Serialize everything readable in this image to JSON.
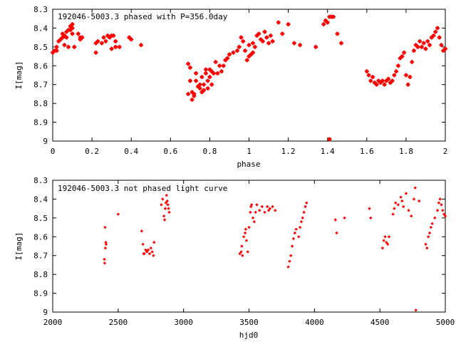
{
  "chart_data": [
    {
      "type": "scatter",
      "title": "192046-5003.3 phased with P=356.0day",
      "xlabel": "phase",
      "ylabel": "I[mag]",
      "xlim": [
        0,
        2
      ],
      "ylim": [
        8.3,
        9
      ],
      "y_inverted": true,
      "xticks": [
        0,
        0.2,
        0.4,
        0.6,
        0.8,
        1,
        1.2,
        1.4,
        1.6,
        1.8,
        2
      ],
      "xtick_labels": [
        "0",
        "0.2",
        "0.4",
        "0.6",
        "0.8",
        "1",
        "1.2",
        "1.4",
        "1.6",
        "1.8",
        "2"
      ],
      "yticks": [
        8.3,
        8.4,
        8.5,
        8.6,
        8.7,
        8.8,
        8.9,
        9
      ],
      "ytick_labels": [
        "8.3",
        "8.4",
        "8.5",
        "8.6",
        "8.7",
        "8.8",
        "8.9",
        "9"
      ],
      "marker_color": "#ff0000",
      "marker": "filled-star",
      "points": [
        [
          0.0,
          8.53
        ],
        [
          0.01,
          8.52
        ],
        [
          0.02,
          8.5
        ],
        [
          0.02,
          8.52
        ],
        [
          0.03,
          8.47
        ],
        [
          0.04,
          8.46
        ],
        [
          0.05,
          8.45
        ],
        [
          0.05,
          8.43
        ],
        [
          0.06,
          8.44
        ],
        [
          0.06,
          8.49
        ],
        [
          0.07,
          8.42
        ],
        [
          0.07,
          8.45
        ],
        [
          0.08,
          8.41
        ],
        [
          0.08,
          8.5
        ],
        [
          0.09,
          8.39
        ],
        [
          0.09,
          8.41
        ],
        [
          0.1,
          8.38
        ],
        [
          0.1,
          8.4
        ],
        [
          0.1,
          8.43
        ],
        [
          0.11,
          8.5
        ],
        [
          0.13,
          8.43
        ],
        [
          0.14,
          8.45
        ],
        [
          0.14,
          8.46
        ],
        [
          0.15,
          8.45
        ],
        [
          0.22,
          8.48
        ],
        [
          0.22,
          8.53
        ],
        [
          0.23,
          8.47
        ],
        [
          0.25,
          8.48
        ],
        [
          0.26,
          8.45
        ],
        [
          0.27,
          8.47
        ],
        [
          0.28,
          8.44
        ],
        [
          0.29,
          8.45
        ],
        [
          0.3,
          8.51
        ],
        [
          0.3,
          8.44
        ],
        [
          0.31,
          8.44
        ],
        [
          0.32,
          8.47
        ],
        [
          0.32,
          8.5
        ],
        [
          0.34,
          8.5
        ],
        [
          0.39,
          8.45
        ],
        [
          0.4,
          8.46
        ],
        [
          0.45,
          8.49
        ],
        [
          0.69,
          8.59
        ],
        [
          0.69,
          8.75
        ],
        [
          0.7,
          8.61
        ],
        [
          0.7,
          8.68
        ],
        [
          0.71,
          8.74
        ],
        [
          0.71,
          8.78
        ],
        [
          0.72,
          8.76
        ],
        [
          0.72,
          8.75
        ],
        [
          0.73,
          8.64
        ],
        [
          0.73,
          8.68
        ],
        [
          0.74,
          8.71
        ],
        [
          0.75,
          8.7
        ],
        [
          0.75,
          8.72
        ],
        [
          0.76,
          8.74
        ],
        [
          0.76,
          8.66
        ],
        [
          0.77,
          8.73
        ],
        [
          0.77,
          8.7
        ],
        [
          0.78,
          8.62
        ],
        [
          0.78,
          8.64
        ],
        [
          0.79,
          8.68
        ],
        [
          0.79,
          8.72
        ],
        [
          0.8,
          8.66
        ],
        [
          0.8,
          8.62
        ],
        [
          0.81,
          8.7
        ],
        [
          0.81,
          8.63
        ],
        [
          0.82,
          8.64
        ],
        [
          0.83,
          8.58
        ],
        [
          0.84,
          8.64
        ],
        [
          0.85,
          8.6
        ],
        [
          0.86,
          8.63
        ],
        [
          0.87,
          8.6
        ],
        [
          0.88,
          8.57
        ],
        [
          0.89,
          8.56
        ],
        [
          0.9,
          8.54
        ],
        [
          0.92,
          8.53
        ],
        [
          0.94,
          8.52
        ],
        [
          0.95,
          8.5
        ],
        [
          0.96,
          8.45
        ],
        [
          0.97,
          8.47
        ],
        [
          0.98,
          8.52
        ],
        [
          0.99,
          8.57
        ],
        [
          1.0,
          8.55
        ],
        [
          1.0,
          8.49
        ],
        [
          1.01,
          8.54
        ],
        [
          1.02,
          8.53
        ],
        [
          1.02,
          8.48
        ],
        [
          1.03,
          8.5
        ],
        [
          1.04,
          8.44
        ],
        [
          1.05,
          8.43
        ],
        [
          1.06,
          8.46
        ],
        [
          1.07,
          8.47
        ],
        [
          1.08,
          8.42
        ],
        [
          1.09,
          8.45
        ],
        [
          1.1,
          8.48
        ],
        [
          1.11,
          8.44
        ],
        [
          1.12,
          8.47
        ],
        [
          1.15,
          8.37
        ],
        [
          1.17,
          8.43
        ],
        [
          1.2,
          8.38
        ],
        [
          1.23,
          8.48
        ],
        [
          1.26,
          8.49
        ],
        [
          1.34,
          8.5
        ],
        [
          1.38,
          8.38
        ],
        [
          1.39,
          8.36
        ],
        [
          1.4,
          8.37
        ],
        [
          1.41,
          8.34
        ],
        [
          1.42,
          8.34
        ],
        [
          1.43,
          8.34
        ],
        [
          1.45,
          8.43
        ],
        [
          1.47,
          8.48
        ],
        [
          1.41,
          8.99
        ],
        [
          1.6,
          8.63
        ],
        [
          1.61,
          8.65
        ],
        [
          1.62,
          8.68
        ],
        [
          1.63,
          8.66
        ],
        [
          1.64,
          8.69
        ],
        [
          1.65,
          8.7
        ],
        [
          1.66,
          8.68
        ],
        [
          1.67,
          8.69
        ],
        [
          1.68,
          8.68
        ],
        [
          1.69,
          8.7
        ],
        [
          1.7,
          8.68
        ],
        [
          1.71,
          8.67
        ],
        [
          1.72,
          8.69
        ],
        [
          1.73,
          8.68
        ],
        [
          1.74,
          8.65
        ],
        [
          1.75,
          8.63
        ],
        [
          1.76,
          8.6
        ],
        [
          1.77,
          8.56
        ],
        [
          1.78,
          8.55
        ],
        [
          1.79,
          8.53
        ],
        [
          1.8,
          8.65
        ],
        [
          1.81,
          8.7
        ],
        [
          1.82,
          8.66
        ],
        [
          1.83,
          8.58
        ],
        [
          1.84,
          8.52
        ],
        [
          1.85,
          8.49
        ],
        [
          1.86,
          8.5
        ],
        [
          1.87,
          8.47
        ],
        [
          1.88,
          8.5
        ],
        [
          1.89,
          8.48
        ],
        [
          1.9,
          8.51
        ],
        [
          1.91,
          8.47
        ],
        [
          1.92,
          8.49
        ],
        [
          1.93,
          8.45
        ],
        [
          1.94,
          8.44
        ],
        [
          1.95,
          8.42
        ],
        [
          1.96,
          8.4
        ],
        [
          1.97,
          8.45
        ],
        [
          1.98,
          8.49
        ],
        [
          1.99,
          8.52
        ],
        [
          2.0,
          8.51
        ]
      ]
    },
    {
      "type": "scatter",
      "title": "192046-5003.3 not phased light curve",
      "xlabel": "hjd0",
      "ylabel": "I[mag]",
      "xlim": [
        2000,
        5000
      ],
      "ylim": [
        8.3,
        9
      ],
      "y_inverted": true,
      "xticks": [
        2000,
        2500,
        3000,
        3500,
        4000,
        4500,
        5000
      ],
      "xtick_labels": [
        "2000",
        "2500",
        "3000",
        "3500",
        "4000",
        "4500",
        "5000"
      ],
      "yticks": [
        8.3,
        8.4,
        8.5,
        8.6,
        8.7,
        8.8,
        8.9,
        9
      ],
      "ytick_labels": [
        "8.3",
        "8.4",
        "8.5",
        "8.6",
        "8.7",
        "8.8",
        "8.9",
        "9"
      ],
      "marker_color": "#ff0000",
      "marker": "filled-diamond",
      "points": [
        [
          2395,
          8.72
        ],
        [
          2397,
          8.74
        ],
        [
          2400,
          8.55
        ],
        [
          2402,
          8.66
        ],
        [
          2406,
          8.63
        ],
        [
          2408,
          8.64
        ],
        [
          2500,
          8.48
        ],
        [
          2680,
          8.57
        ],
        [
          2690,
          8.64
        ],
        [
          2695,
          8.69
        ],
        [
          2700,
          8.69
        ],
        [
          2710,
          8.67
        ],
        [
          2720,
          8.68
        ],
        [
          2730,
          8.67
        ],
        [
          2740,
          8.69
        ],
        [
          2750,
          8.66
        ],
        [
          2760,
          8.68
        ],
        [
          2770,
          8.7
        ],
        [
          2775,
          8.63
        ],
        [
          2830,
          8.43
        ],
        [
          2840,
          8.4
        ],
        [
          2850,
          8.49
        ],
        [
          2855,
          8.51
        ],
        [
          2860,
          8.45
        ],
        [
          2865,
          8.42
        ],
        [
          2870,
          8.38
        ],
        [
          2875,
          8.41
        ],
        [
          2880,
          8.43
        ],
        [
          2885,
          8.45
        ],
        [
          2890,
          8.47
        ],
        [
          3430,
          8.69
        ],
        [
          3440,
          8.68
        ],
        [
          3445,
          8.65
        ],
        [
          3450,
          8.7
        ],
        [
          3460,
          8.6
        ],
        [
          3470,
          8.58
        ],
        [
          3475,
          8.56
        ],
        [
          3480,
          8.62
        ],
        [
          3490,
          8.68
        ],
        [
          3500,
          8.55
        ],
        [
          3510,
          8.47
        ],
        [
          3515,
          8.44
        ],
        [
          3520,
          8.43
        ],
        [
          3530,
          8.5
        ],
        [
          3540,
          8.52
        ],
        [
          3550,
          8.47
        ],
        [
          3560,
          8.43
        ],
        [
          3580,
          8.46
        ],
        [
          3600,
          8.44
        ],
        [
          3620,
          8.47
        ],
        [
          3640,
          8.44
        ],
        [
          3650,
          8.46
        ],
        [
          3660,
          8.45
        ],
        [
          3680,
          8.44
        ],
        [
          3700,
          8.46
        ],
        [
          3800,
          8.76
        ],
        [
          3810,
          8.73
        ],
        [
          3820,
          8.7
        ],
        [
          3830,
          8.65
        ],
        [
          3840,
          8.61
        ],
        [
          3850,
          8.58
        ],
        [
          3860,
          8.56
        ],
        [
          3880,
          8.6
        ],
        [
          3890,
          8.55
        ],
        [
          3900,
          8.52
        ],
        [
          3910,
          8.5
        ],
        [
          3920,
          8.47
        ],
        [
          3930,
          8.44
        ],
        [
          3940,
          8.42
        ],
        [
          4160,
          8.51
        ],
        [
          4170,
          8.58
        ],
        [
          4230,
          8.5
        ],
        [
          4420,
          8.45
        ],
        [
          4430,
          8.5
        ],
        [
          4520,
          8.66
        ],
        [
          4530,
          8.62
        ],
        [
          4540,
          8.6
        ],
        [
          4550,
          8.63
        ],
        [
          4560,
          8.64
        ],
        [
          4570,
          8.6
        ],
        [
          4600,
          8.48
        ],
        [
          4610,
          8.45
        ],
        [
          4620,
          8.42
        ],
        [
          4640,
          8.43
        ],
        [
          4660,
          8.39
        ],
        [
          4670,
          8.41
        ],
        [
          4680,
          8.44
        ],
        [
          4700,
          8.37
        ],
        [
          4720,
          8.46
        ],
        [
          4740,
          8.49
        ],
        [
          4760,
          8.4
        ],
        [
          4770,
          8.34
        ],
        [
          4775,
          8.99
        ],
        [
          4800,
          8.41
        ],
        [
          4850,
          8.64
        ],
        [
          4860,
          8.66
        ],
        [
          4870,
          8.6
        ],
        [
          4880,
          8.58
        ],
        [
          4890,
          8.55
        ],
        [
          4900,
          8.53
        ],
        [
          4920,
          8.5
        ],
        [
          4940,
          8.46
        ],
        [
          4950,
          8.42
        ],
        [
          4960,
          8.4
        ],
        [
          4970,
          8.43
        ],
        [
          4980,
          8.46
        ],
        [
          4990,
          8.48
        ],
        [
          5000,
          8.49
        ]
      ]
    }
  ]
}
